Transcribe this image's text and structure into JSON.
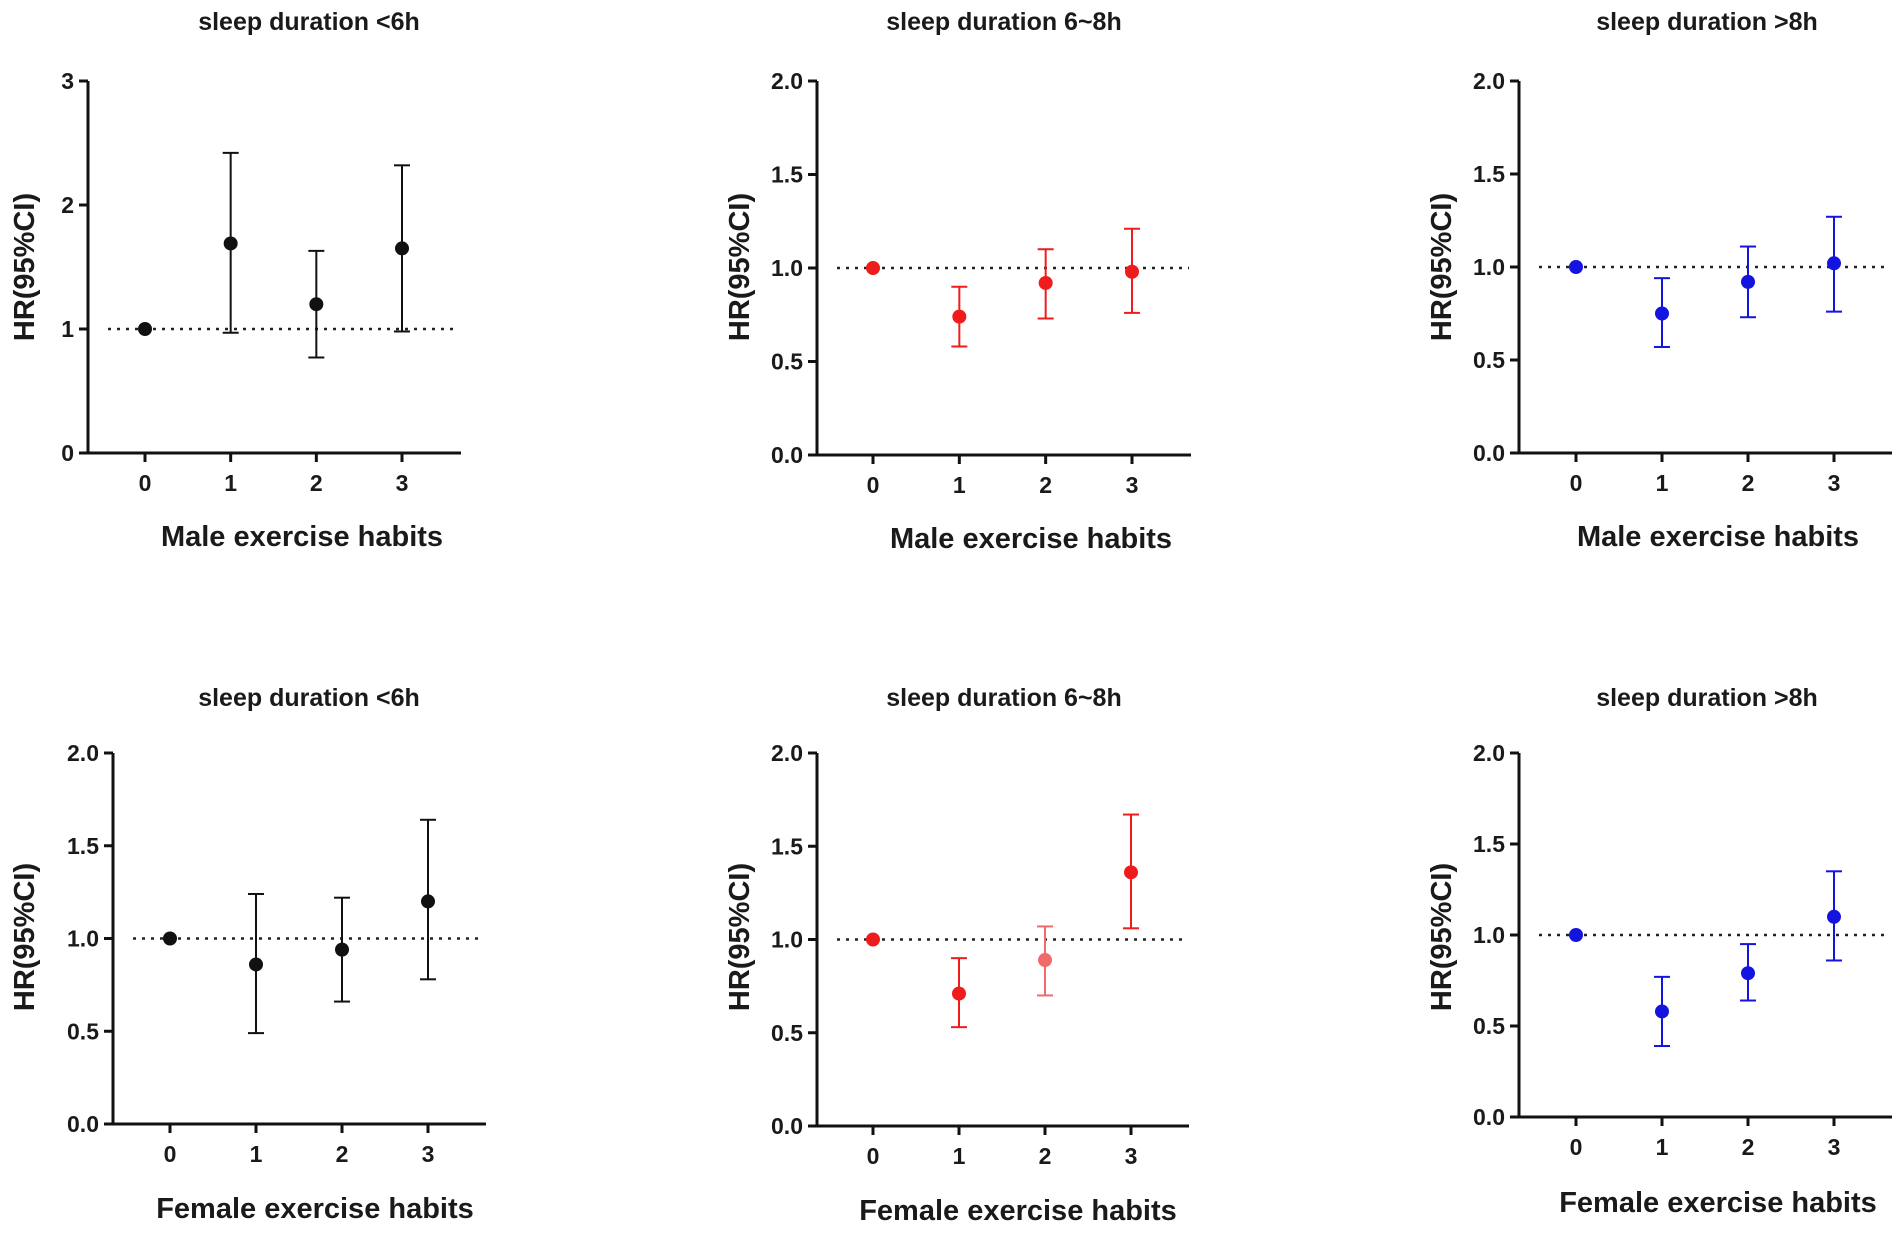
{
  "colors": {
    "black": "#111111",
    "red": "#ee1c1c",
    "light_red": "#ef6b6b",
    "blue": "#1414e0"
  },
  "chart_data": [
    {
      "type": "scatter",
      "title": "sleep duration <6h",
      "xlabel": "Male exercise habits",
      "ylabel": "HR(95%CI)",
      "categories": [
        "0",
        "1",
        "2",
        "3"
      ],
      "ylim": [
        0,
        3
      ],
      "yticks": [
        "0",
        "1",
        "2",
        "3"
      ],
      "reference_line": 1,
      "color": "#111111",
      "series": [
        {
          "name": "HR",
          "values": [
            1.0,
            1.69,
            1.2,
            1.65
          ],
          "lower": [
            1.0,
            0.97,
            0.77,
            0.98
          ],
          "upper": [
            1.0,
            2.42,
            1.63,
            2.32
          ]
        }
      ]
    },
    {
      "type": "scatter",
      "title": "sleep duration 6~8h",
      "xlabel": "Male exercise habits",
      "ylabel": "HR(95%CI)",
      "categories": [
        "0",
        "1",
        "2",
        "3"
      ],
      "ylim": [
        0,
        2
      ],
      "yticks": [
        "0.0",
        "0.5",
        "1.0",
        "1.5",
        "2.0"
      ],
      "reference_line": 1,
      "color": "#ee1c1c",
      "series": [
        {
          "name": "HR",
          "values": [
            1.0,
            0.74,
            0.92,
            0.98
          ],
          "lower": [
            1.0,
            0.58,
            0.73,
            0.76
          ],
          "upper": [
            1.0,
            0.9,
            1.1,
            1.21
          ]
        }
      ]
    },
    {
      "type": "scatter",
      "title": "sleep duration >8h",
      "xlabel": "Male exercise habits",
      "ylabel": "HR(95%CI)",
      "categories": [
        "0",
        "1",
        "2",
        "3"
      ],
      "ylim": [
        0,
        2
      ],
      "yticks": [
        "0.0",
        "0.5",
        "1.0",
        "1.5",
        "2.0"
      ],
      "reference_line": 1,
      "color": "#1414e0",
      "series": [
        {
          "name": "HR",
          "values": [
            1.0,
            0.75,
            0.92,
            1.02
          ],
          "lower": [
            1.0,
            0.57,
            0.73,
            0.76
          ],
          "upper": [
            1.0,
            0.94,
            1.11,
            1.27
          ]
        }
      ]
    },
    {
      "type": "scatter",
      "title": "sleep duration <6h",
      "xlabel": "Female exercise habits",
      "ylabel": "HR(95%CI)",
      "categories": [
        "0",
        "1",
        "2",
        "3"
      ],
      "ylim": [
        0,
        2
      ],
      "yticks": [
        "0.0",
        "0.5",
        "1.0",
        "1.5",
        "2.0"
      ],
      "reference_line": 1,
      "color": "#111111",
      "series": [
        {
          "name": "HR",
          "values": [
            1.0,
            0.86,
            0.94,
            1.2
          ],
          "lower": [
            1.0,
            0.49,
            0.66,
            0.78
          ],
          "upper": [
            1.0,
            1.24,
            1.22,
            1.64
          ]
        }
      ]
    },
    {
      "type": "scatter",
      "title": "sleep duration 6~8h",
      "xlabel": "Female exercise habits",
      "ylabel": "HR(95%CI)",
      "categories": [
        "0",
        "1",
        "2",
        "3"
      ],
      "ylim": [
        0,
        2
      ],
      "yticks": [
        "0.0",
        "0.5",
        "1.0",
        "1.5",
        "2.0"
      ],
      "reference_line": 1,
      "color": "#ee1c1c",
      "point_colors": [
        "#ee1c1c",
        "#ee1c1c",
        "#ef6b6b",
        "#ee1c1c"
      ],
      "series": [
        {
          "name": "HR",
          "values": [
            1.0,
            0.71,
            0.89,
            1.36
          ],
          "lower": [
            1.0,
            0.53,
            0.7,
            1.06
          ],
          "upper": [
            1.0,
            0.9,
            1.07,
            1.67
          ]
        }
      ]
    },
    {
      "type": "scatter",
      "title": "sleep duration >8h",
      "xlabel": "Female exercise habits",
      "ylabel": "HR(95%CI)",
      "categories": [
        "0",
        "1",
        "2",
        "3"
      ],
      "ylim": [
        0,
        2
      ],
      "yticks": [
        "0.0",
        "0.5",
        "1.0",
        "1.5",
        "2.0"
      ],
      "reference_line": 1,
      "color": "#1414e0",
      "series": [
        {
          "name": "HR",
          "values": [
            1.0,
            0.58,
            0.79,
            1.1
          ],
          "lower": [
            1.0,
            0.39,
            0.64,
            0.86
          ],
          "upper": [
            1.0,
            0.77,
            0.95,
            1.35
          ]
        }
      ]
    }
  ]
}
